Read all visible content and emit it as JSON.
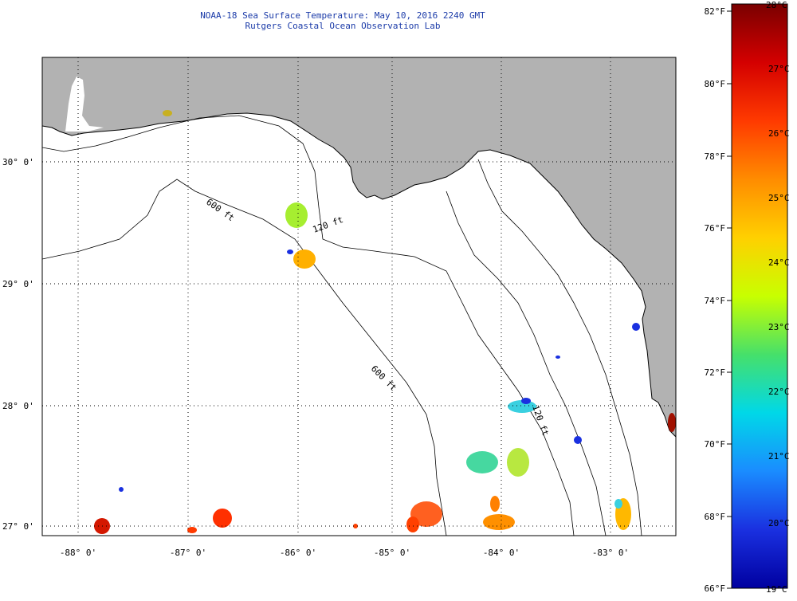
{
  "title_line1": "NOAA-18 Sea Surface Temperature:  May 10, 2016 2240 GMT",
  "title_line2": "Rutgers Coastal Ocean Observation Lab",
  "lat_labels": [
    "30° 0'",
    "29° 0'",
    "28° 0'",
    "27° 0'"
  ],
  "lon_labels": [
    "-88° 0'",
    "-87° 0'",
    "-86° 0'",
    "-85° 0'",
    "-84° 0'",
    "-83° 0'"
  ],
  "isobath_labels": [
    "600 ft",
    "120 ft",
    "600 ft",
    "120 ft"
  ],
  "colorbar": {
    "fahrenheit": [
      "82°F",
      "80°F",
      "78°F",
      "76°F",
      "74°F",
      "72°F",
      "70°F",
      "68°F",
      "66°F"
    ],
    "celsius": [
      "28°C",
      "27°C",
      "26°C",
      "25°C",
      "24°C",
      "23°C",
      "22°C",
      "21°C",
      "20°C",
      "19°C"
    ],
    "stops": [
      "#7a0000",
      "#d40000",
      "#ff3a00",
      "#ff8c00",
      "#ffd000",
      "#c8ff00",
      "#46e06a",
      "#00d8e8",
      "#1a8cff",
      "#1a30e0",
      "#0000a0"
    ]
  },
  "colors": {
    "land": "#b2b2b2",
    "ocean": "#ffffff",
    "title": "#1a3aa8"
  }
}
